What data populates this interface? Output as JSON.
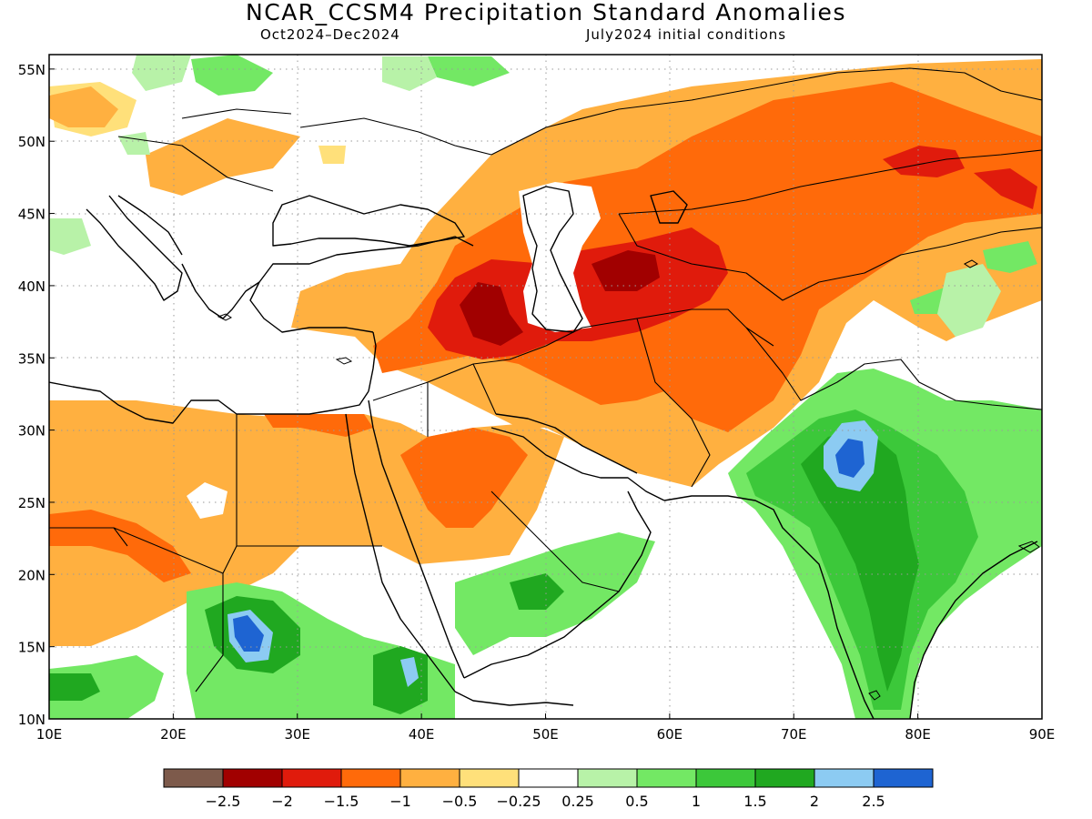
{
  "header": {
    "title": "NCAR_CCSM4 Precipitation Standard Anomalies",
    "period": "Oct2024–Dec2024",
    "initial_conditions": "July2024 initial conditions"
  },
  "map": {
    "lon_range": [
      10,
      90
    ],
    "lat_range": [
      10,
      56
    ],
    "lon_ticks": [
      "10E",
      "20E",
      "30E",
      "40E",
      "50E",
      "60E",
      "70E",
      "80E",
      "90E"
    ],
    "lat_ticks": [
      "10N",
      "15N",
      "20N",
      "25N",
      "30N",
      "35N",
      "40N",
      "45N",
      "50N",
      "55N"
    ],
    "grid": "dotted"
  },
  "colorbar": {
    "colors": [
      "#7d5a4b",
      "#a10000",
      "#e01b0c",
      "#ff6a0a",
      "#ffb040",
      "#ffe07a",
      "#ffffff",
      "#b8f2a8",
      "#73e864",
      "#3cc83a",
      "#20a820",
      "#8ccbf2",
      "#1e64d2"
    ],
    "labels": [
      "−2.5",
      "−2",
      "−1.5",
      "−1",
      "−0.5",
      "−0.25",
      "0.25",
      "0.5",
      "1",
      "1.5",
      "2",
      "2.5"
    ]
  }
}
